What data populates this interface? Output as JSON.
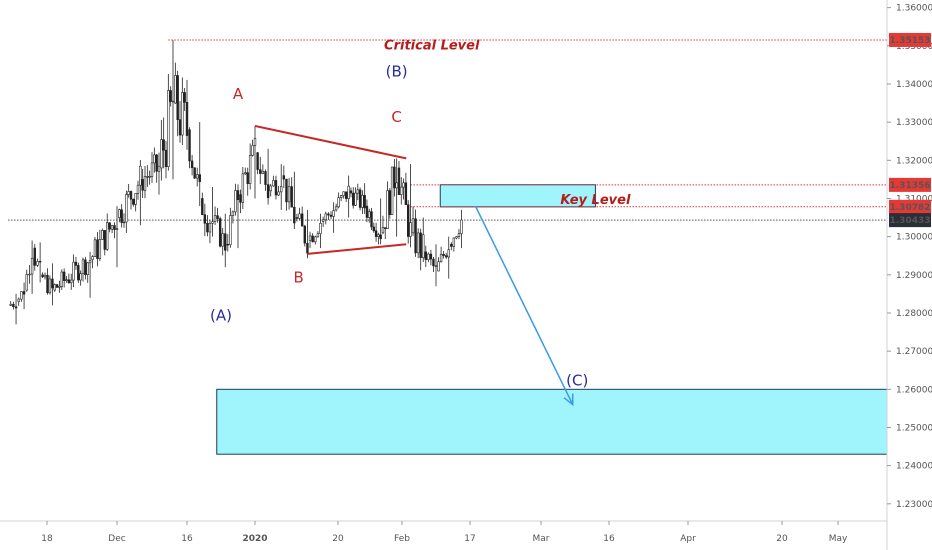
{
  "chart_data": {
    "type": "candlestick",
    "y_axis": {
      "range": [
        1.2255,
        1.362
      ],
      "ticks": [
        "1.36000",
        "1.35000",
        "1.34000",
        "1.33000",
        "1.32000",
        "1.31000",
        "1.30000",
        "1.29000",
        "1.28000",
        "1.27000",
        "1.26000",
        "1.25000",
        "1.24000",
        "1.23000"
      ]
    },
    "x_axis": {
      "ticks": [
        "18",
        "Dec",
        "16",
        "2020",
        "20",
        "Feb",
        "17",
        "Mar",
        "16",
        "Apr",
        "20",
        "May"
      ]
    },
    "price_labels": [
      {
        "text": "1.35153",
        "value": 1.35153,
        "color": "#e53935"
      },
      {
        "text": "1.31356",
        "value": 1.31356,
        "color": "#e53935"
      },
      {
        "text": "1.30782",
        "value": 1.30782,
        "color": "#e53935"
      },
      {
        "text": "1.30433",
        "value": 1.30433,
        "color": "#2a2e39"
      }
    ],
    "level_lines": [
      {
        "value": 1.35153,
        "color": "#e53935",
        "style": "dotted",
        "start_date": "2019-12-12"
      },
      {
        "value": 1.31356,
        "color": "#e53935",
        "style": "dotted",
        "start_date": "2020-02-03"
      },
      {
        "value": 1.30782,
        "color": "#e53935",
        "style": "dotted",
        "start_date": "2020-02-03"
      },
      {
        "value": 1.30433,
        "color": "#555555",
        "style": "dotted",
        "start_date": "2019-10-15"
      }
    ],
    "zones": [
      {
        "from_date": "2020-02-10",
        "to_date": "2020-03-13",
        "low": 1.3078,
        "high": 1.3136,
        "color": "#80f0fa"
      },
      {
        "from_date": "2019-12-23",
        "to_date": "2020-05-20",
        "low": 1.243,
        "high": 1.26,
        "color": "#80f0fa"
      }
    ],
    "trendlines": [
      {
        "from": [
          "2020-01-01",
          1.329
        ],
        "to": [
          "2020-02-02",
          1.3205
        ],
        "color": "#c62828"
      },
      {
        "from": [
          "2020-01-13",
          1.2955
        ],
        "to": [
          "2020-02-02",
          1.298
        ],
        "color": "#c62828"
      }
    ],
    "arrow": {
      "from": [
        "2020-02-18",
        1.308
      ],
      "to": [
        "2020-03-08",
        1.256
      ],
      "color": "#3b9be5"
    },
    "annotations": [
      {
        "text": "Critical Level",
        "date": "2020-02-08",
        "value": 1.349,
        "color": "#b71c1c",
        "italic": true,
        "bold": true
      },
      {
        "text": "Key Level",
        "date": "2020-03-13",
        "value": 1.3085,
        "color": "#b71c1c",
        "italic": true,
        "bold": true
      },
      {
        "text": "A",
        "date": "2019-12-28",
        "value": 1.336,
        "color": "#c62828"
      },
      {
        "text": "B",
        "date": "2020-01-11",
        "value": 1.288,
        "color": "#c62828"
      },
      {
        "text": "C",
        "date": "2020-01-31",
        "value": 1.33,
        "color": "#c62828"
      },
      {
        "text": "(A)",
        "date": "2019-12-24",
        "value": 1.278,
        "color": "#2a2aa0"
      },
      {
        "text": "(B)",
        "date": "2020-01-31",
        "value": 1.342,
        "color": "#2a2aa0"
      },
      {
        "text": "(C)",
        "date": "2020-03-09",
        "value": 1.261,
        "color": "#2a2aa0"
      }
    ],
    "series": [
      {
        "date": "2019-10-15",
        "open": 1.286,
        "high": 1.2875,
        "low": 1.28,
        "close": 1.282
      },
      {
        "date": "2019-10-22",
        "open": 1.282,
        "high": 1.285,
        "low": 1.277,
        "close": 1.283
      },
      {
        "date": "2019-10-29",
        "open": 1.283,
        "high": 1.288,
        "low": 1.281,
        "close": 1.286
      },
      {
        "date": "2019-11-05",
        "open": 1.286,
        "high": 1.299,
        "low": 1.285,
        "close": 1.297
      },
      {
        "date": "2019-11-12",
        "open": 1.297,
        "high": 1.2985,
        "low": 1.288,
        "close": 1.29
      },
      {
        "date": "2019-11-19",
        "open": 1.29,
        "high": 1.293,
        "low": 1.282,
        "close": 1.286
      },
      {
        "date": "2019-11-26",
        "open": 1.286,
        "high": 1.296,
        "low": 1.284,
        "close": 1.294
      },
      {
        "date": "2019-12-01",
        "open": 1.294,
        "high": 1.308,
        "low": 1.292,
        "close": 1.305
      },
      {
        "date": "2019-12-06",
        "open": 1.305,
        "high": 1.32,
        "low": 1.303,
        "close": 1.315
      },
      {
        "date": "2019-12-10",
        "open": 1.315,
        "high": 1.322,
        "low": 1.311,
        "close": 1.318
      },
      {
        "date": "2019-12-13",
        "open": 1.318,
        "high": 1.3515,
        "low": 1.315,
        "close": 1.335
      },
      {
        "date": "2019-12-16",
        "open": 1.335,
        "high": 1.336,
        "low": 1.323,
        "close": 1.328
      },
      {
        "date": "2019-12-19",
        "open": 1.328,
        "high": 1.33,
        "low": 1.308,
        "close": 1.31
      },
      {
        "date": "2019-12-22",
        "open": 1.31,
        "high": 1.313,
        "low": 1.3,
        "close": 1.304
      },
      {
        "date": "2019-12-25",
        "open": 1.304,
        "high": 1.306,
        "low": 1.292,
        "close": 1.298
      },
      {
        "date": "2019-12-28",
        "open": 1.298,
        "high": 1.313,
        "low": 1.297,
        "close": 1.311
      },
      {
        "date": "2020-01-01",
        "open": 1.311,
        "high": 1.329,
        "low": 1.31,
        "close": 1.322
      },
      {
        "date": "2020-01-04",
        "open": 1.322,
        "high": 1.323,
        "low": 1.309,
        "close": 1.312
      },
      {
        "date": "2020-01-07",
        "open": 1.312,
        "high": 1.319,
        "low": 1.307,
        "close": 1.316
      },
      {
        "date": "2020-01-10",
        "open": 1.316,
        "high": 1.317,
        "low": 1.302,
        "close": 1.305
      },
      {
        "date": "2020-01-13",
        "open": 1.305,
        "high": 1.307,
        "low": 1.2955,
        "close": 1.299
      },
      {
        "date": "2020-01-16",
        "open": 1.299,
        "high": 1.306,
        "low": 1.297,
        "close": 1.304
      },
      {
        "date": "2020-01-19",
        "open": 1.304,
        "high": 1.309,
        "low": 1.301,
        "close": 1.307
      },
      {
        "date": "2020-01-22",
        "open": 1.307,
        "high": 1.316,
        "low": 1.305,
        "close": 1.312
      },
      {
        "date": "2020-01-25",
        "open": 1.312,
        "high": 1.314,
        "low": 1.306,
        "close": 1.308
      },
      {
        "date": "2020-01-28",
        "open": 1.308,
        "high": 1.31,
        "low": 1.298,
        "close": 1.301
      },
      {
        "date": "2020-01-31",
        "open": 1.301,
        "high": 1.3205,
        "low": 1.3,
        "close": 1.318
      },
      {
        "date": "2020-02-03",
        "open": 1.318,
        "high": 1.319,
        "low": 1.299,
        "close": 1.301
      },
      {
        "date": "2020-02-06",
        "open": 1.301,
        "high": 1.305,
        "low": 1.294,
        "close": 1.296
      },
      {
        "date": "2020-02-09",
        "open": 1.296,
        "high": 1.298,
        "low": 1.287,
        "close": 1.291
      },
      {
        "date": "2020-02-12",
        "open": 1.291,
        "high": 1.3,
        "low": 1.289,
        "close": 1.298
      },
      {
        "date": "2020-02-15",
        "open": 1.298,
        "high": 1.307,
        "low": 1.297,
        "close": 1.3043
      }
    ]
  }
}
